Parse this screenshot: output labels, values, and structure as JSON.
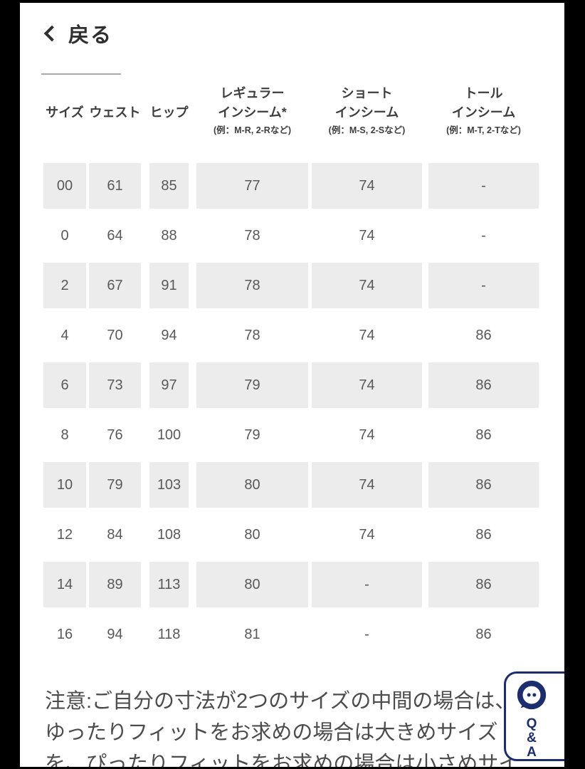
{
  "page": {
    "back_label": "戻る"
  },
  "table": {
    "headers": [
      {
        "line1": "",
        "line2": "サイズ",
        "note": ""
      },
      {
        "line1": "",
        "line2": "ウェスト",
        "note": ""
      },
      {
        "line1": "",
        "line2": "ヒップ",
        "note": ""
      },
      {
        "line1": "レギュラー",
        "line2": "インシーム*",
        "note": "(例：M-R, 2-Rなど)"
      },
      {
        "line1": "ショート",
        "line2": "インシーム",
        "note": "(例：M-S, 2-Sなど)"
      },
      {
        "line1": "トール",
        "line2": "インシーム",
        "note": "(例：M-T, 2-Tなど)"
      }
    ],
    "rows": [
      [
        "00",
        "61",
        "85",
        "77",
        "74",
        "-"
      ],
      [
        "0",
        "64",
        "88",
        "78",
        "74",
        "-"
      ],
      [
        "2",
        "67",
        "91",
        "78",
        "74",
        "-"
      ],
      [
        "4",
        "70",
        "94",
        "78",
        "74",
        "86"
      ],
      [
        "6",
        "73",
        "97",
        "79",
        "74",
        "86"
      ],
      [
        "8",
        "76",
        "100",
        "79",
        "74",
        "86"
      ],
      [
        "10",
        "79",
        "103",
        "80",
        "74",
        "86"
      ],
      [
        "12",
        "84",
        "108",
        "80",
        "74",
        "86"
      ],
      [
        "14",
        "89",
        "113",
        "80",
        "-",
        "86"
      ],
      [
        "16",
        "94",
        "118",
        "81",
        "-",
        "86"
      ]
    ]
  },
  "footnote": {
    "line1": "注意:ご自分の寸法が2つのサイズの中間の場合は、",
    "line2": "ゆったりフィットをお求めの場合は大きめサイズ",
    "line3": "を、ぴったりフィットをお求めの場合は小さめサイ"
  },
  "qa_widget": {
    "letter1": "Q",
    "letter2": "&",
    "letter3": "A"
  },
  "colors": {
    "navy": "#1d2e6e",
    "shaded_row": "#ececec",
    "text_dark": "#3d3d3d",
    "text_cell": "#595959"
  }
}
